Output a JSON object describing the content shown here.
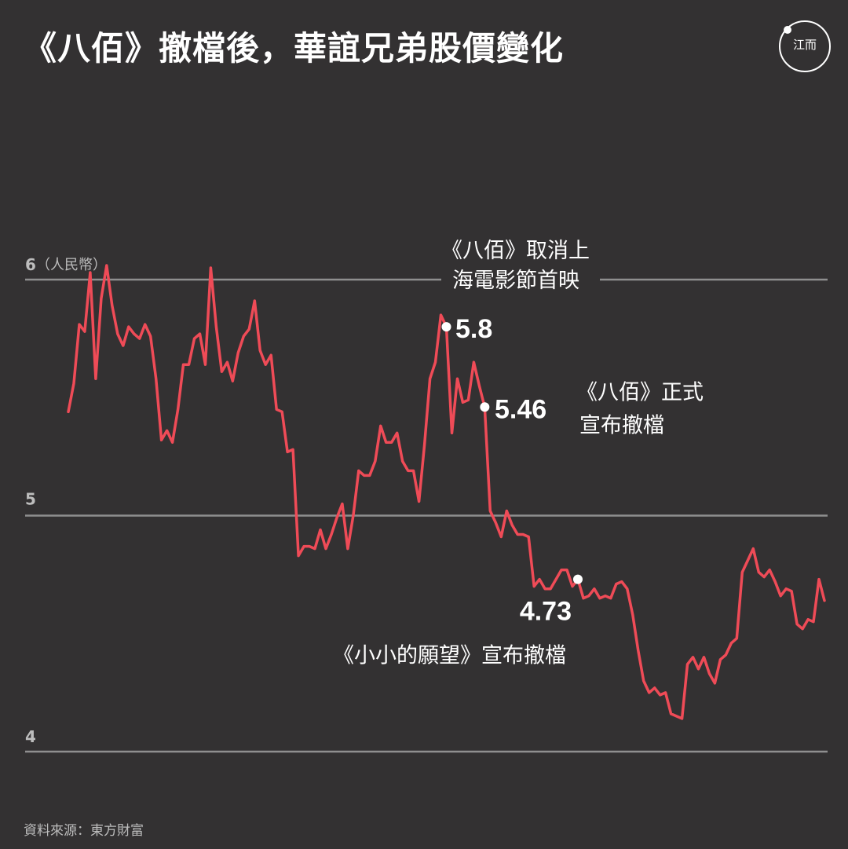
{
  "title": "《八佰》撤檔後，華誼兄弟股價變化",
  "logo": {
    "text": "江而"
  },
  "source": "資料來源：東方財富",
  "colors": {
    "background": "#333132",
    "line": "#ef4b57",
    "grid": "#8f8f8f",
    "text": "#ffffff",
    "axis_text": "#bdbdbd"
  },
  "chart_data": {
    "type": "line",
    "title": "《八佰》撤檔後，華誼兄弟股價變化",
    "unit": "（人民幣）",
    "ylim": [
      4,
      6
    ],
    "yticks": [
      "6",
      "5",
      "4"
    ],
    "grid": true,
    "series": [
      {
        "values": [
          5.44,
          5.56,
          5.81,
          5.78,
          6.03,
          5.58,
          5.92,
          6.06,
          5.89,
          5.77,
          5.72,
          5.8,
          5.77,
          5.75,
          5.81,
          5.76,
          5.58,
          5.32,
          5.36,
          5.31,
          5.45,
          5.64,
          5.64,
          5.75,
          5.77,
          5.64,
          6.05,
          5.8,
          5.61,
          5.65,
          5.57,
          5.69,
          5.76,
          5.79,
          5.91,
          5.7,
          5.64,
          5.68,
          5.45,
          5.44,
          5.27,
          5.28,
          4.83,
          4.87,
          4.87,
          4.86,
          4.94,
          4.86,
          4.92,
          4.99,
          5.05,
          4.86,
          5.0,
          5.19,
          5.17,
          5.17,
          5.23,
          5.38,
          5.31,
          5.31,
          5.35,
          5.23,
          5.19,
          5.19,
          5.06,
          5.3,
          5.58,
          5.65,
          5.85,
          5.8,
          5.35,
          5.58,
          5.48,
          5.49,
          5.65,
          5.55,
          5.46,
          5.02,
          4.97,
          4.91,
          5.02,
          4.96,
          4.92,
          4.92,
          4.91,
          4.7,
          4.73,
          4.69,
          4.69,
          4.73,
          4.77,
          4.77,
          4.7,
          4.73,
          4.65,
          4.66,
          4.69,
          4.65,
          4.66,
          4.65,
          4.71,
          4.72,
          4.69,
          4.58,
          4.43,
          4.3,
          4.25,
          4.27,
          4.24,
          4.25,
          4.16,
          4.15,
          4.14,
          4.37,
          4.4,
          4.35,
          4.4,
          4.33,
          4.29,
          4.39,
          4.41,
          4.46,
          4.48,
          4.76,
          4.81,
          4.86,
          4.76,
          4.74,
          4.77,
          4.72,
          4.66,
          4.69,
          4.68,
          4.54,
          4.52,
          4.56,
          4.55,
          4.73,
          4.64
        ]
      }
    ],
    "annotations": [
      {
        "point_index": 69,
        "value_label": "5.8",
        "note_lines": [
          "《八佰》取消上",
          "海電影節首映"
        ]
      },
      {
        "point_index": 76,
        "value_label": "5.46",
        "note_lines": [
          "《八佰》正式",
          "宣布撤檔"
        ]
      },
      {
        "point_index": 93,
        "value_label": "4.73",
        "note_lines": [
          "《小小的願望》宣布撤檔"
        ]
      }
    ]
  }
}
